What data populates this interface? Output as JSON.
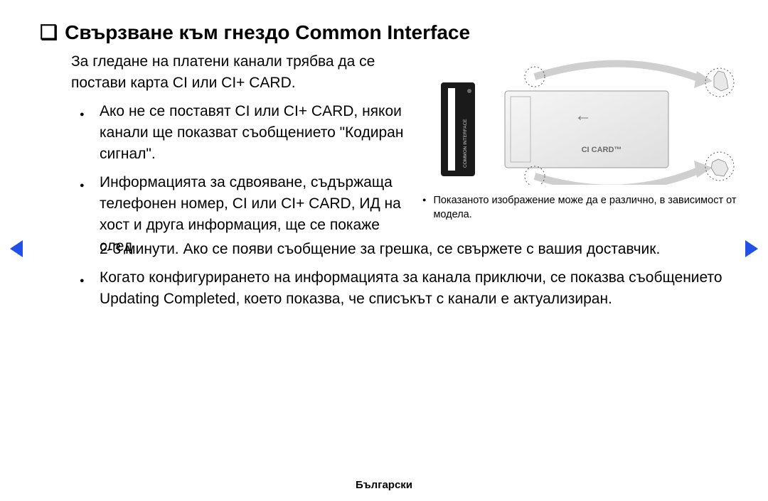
{
  "title_bullet": "❏",
  "title": "Свързване към гнездо Common Interface",
  "intro": "За гледане на платени канали трябва да се постави карта CI или CI+ CARD.",
  "bullets_narrow": [
    "Ако не се поставят CI или CI+ CARD, някои канали ще показват съобщението \"Кодиран сигнал\"."
  ],
  "bullet_split_narrow": "Информацията за сдвояване, съдържаща телефонен номер, CI или CI+ CARD, ИД на хост и друга информация, ще се покаже след",
  "bullet_split_wide": "2-3 минути. Ако се появи съобщение за грешка, се свържете с вашия доставчик.",
  "bullets_full": [
    "Когато конфигурирането на информацията за канала приключи, се показва съобщението Updating Completed, което показва, че списъкът с канали е актуализиран."
  ],
  "figure": {
    "slot_label": "COMMON INTERFACE",
    "card_label": "CI CARD™",
    "arrow": "←"
  },
  "caption": "Показаното изображение може да е различно, в зависимост от модела.",
  "footer": "Български",
  "colors": {
    "nav_arrow": "#2050e8",
    "slot_fill": "#1a1a1a",
    "card_border": "#9a9a9a",
    "card_fill1": "#f4f4f4",
    "card_fill2": "#e4e4e4",
    "dotted": "#5a5a5a",
    "swoosh": "#cfcfcf"
  }
}
